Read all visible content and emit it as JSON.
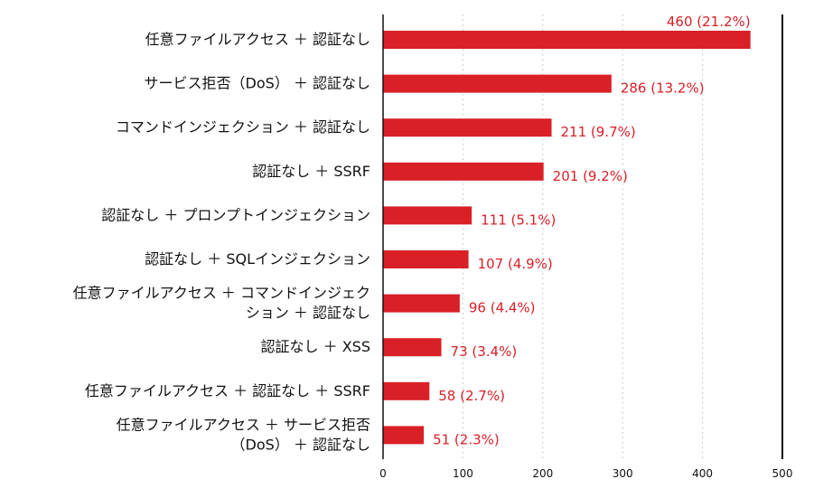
{
  "chart_data": {
    "type": "bar",
    "orientation": "horizontal",
    "categories": [
      [
        "任意ファイルアクセス ＋ 認証なし"
      ],
      [
        "サービス拒否（DoS） ＋ 認証なし"
      ],
      [
        "コマンドインジェクション ＋ 認証なし"
      ],
      [
        "認証なし ＋ SSRF"
      ],
      [
        "認証なし ＋ プロンプトインジェクション"
      ],
      [
        "認証なし ＋ SQLインジェクション"
      ],
      [
        "任意ファイルアクセス ＋ コマンドインジェク",
        "ション ＋ 認証なし"
      ],
      [
        "認証なし ＋ XSS"
      ],
      [
        "任意ファイルアクセス ＋ 認証なし ＋ SSRF"
      ],
      [
        "任意ファイルアクセス ＋ サービス拒否",
        "（DoS） ＋ 認証なし"
      ]
    ],
    "values": [
      460,
      286,
      211,
      201,
      111,
      107,
      96,
      73,
      58,
      51
    ],
    "value_labels": [
      "460 (21.2%)",
      "286 (13.2%)",
      "211 (9.7%)",
      "201 (9.2%)",
      "111 (5.1%)",
      "107 (4.9%)",
      "96 (4.4%)",
      "73 (3.4%)",
      "58 (2.7%)",
      "51 (2.3%)"
    ],
    "xlim": [
      0,
      500
    ],
    "xticks": [
      0,
      100,
      200,
      300,
      400,
      500
    ],
    "grid": "vertical-dotted",
    "colors": {
      "bar": "#d92027",
      "value_text": "#d92027",
      "axis": "#111111",
      "grid": "#bdbdbd"
    }
  }
}
